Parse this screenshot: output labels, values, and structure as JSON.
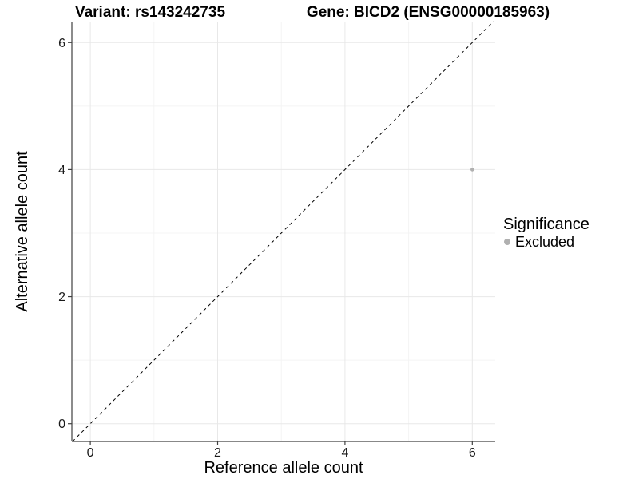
{
  "figure": {
    "title_left": "Variant: rs143242735",
    "title_right": "Gene: BICD2 (ENSG00000185963)"
  },
  "chart_data": {
    "type": "scatter",
    "title": "Variant: rs143242735 / Gene: BICD2 (ENSG00000185963)",
    "xlabel": "Reference allele count",
    "ylabel": "Alternative allele count",
    "xlim": [
      -0.29,
      6.36
    ],
    "ylim": [
      -0.28,
      6.33
    ],
    "xticks": [
      0,
      2,
      4,
      6
    ],
    "yticks": [
      0,
      2,
      4,
      6
    ],
    "xminor": [
      1,
      3,
      5
    ],
    "yminor": [
      1,
      3,
      5
    ],
    "grid": "major+minor",
    "points": [
      {
        "x": 6,
        "y": 4,
        "series": "Excluded"
      }
    ],
    "reference_line": {
      "kind": "identity",
      "equation": "y = x",
      "style": "dashed",
      "color": "#000000"
    },
    "legend": {
      "title": "Significance",
      "position": "right",
      "items": [
        {
          "label": "Excluded",
          "color": "#b0b0b0"
        }
      ]
    },
    "colors": {
      "point": "#b0b0b0",
      "grid_major": "#e8e8e8",
      "grid_minor": "#f4f4f4",
      "axis_line": "#404040",
      "tick_mark": "#404040",
      "tick_label": "#1a1a1a"
    }
  }
}
